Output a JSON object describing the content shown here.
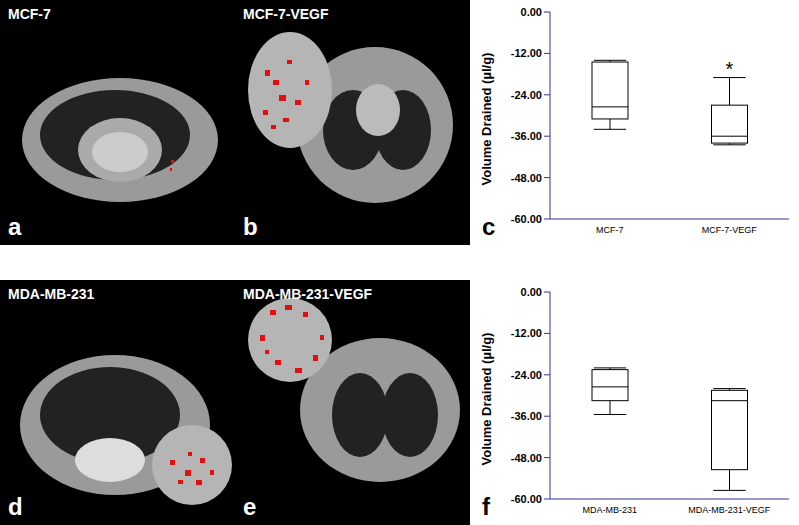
{
  "panels": [
    {
      "label": "a",
      "title": "MCF-7"
    },
    {
      "label": "b",
      "title": "MCF-7-VEGF"
    },
    {
      "label": "d",
      "title": "MDA-MB-231"
    },
    {
      "label": "e",
      "title": "MDA-MB-231-VEGF"
    }
  ],
  "chart_data": [
    {
      "type": "box",
      "panel_label": "c",
      "y_label": "Volume Drained (µl/g)",
      "categories": [
        "MCF-7",
        "MCF-7-VEGF"
      ],
      "min": [
        -34,
        -38.5
      ],
      "q1": [
        -31,
        -38
      ],
      "median": [
        -27.5,
        -36
      ],
      "q3": [
        -14.5,
        -27
      ],
      "max": [
        -14,
        -19
      ],
      "annotations": [
        {
          "category": "MCF-7-VEGF",
          "text": "*"
        }
      ],
      "ylim": [
        -60,
        0
      ],
      "yticks": [
        {
          "value": -60,
          "label": "-60.00"
        },
        {
          "value": -48,
          "label": "-48.00"
        },
        {
          "value": -36,
          "label": "-36.00"
        },
        {
          "value": -24,
          "label": "-24.00"
        },
        {
          "value": -12,
          "label": "-12.00"
        },
        {
          "value": 0,
          "label": "0.00"
        }
      ]
    },
    {
      "type": "box",
      "panel_label": "f",
      "y_label": "Volume Drained (µl/g)",
      "categories": [
        "MDA-MB-231",
        "MDA-MB-231-VEGF"
      ],
      "min": [
        -35.5,
        -57.5
      ],
      "q1": [
        -31.5,
        -51.5
      ],
      "median": [
        -27.5,
        -31.5
      ],
      "q3": [
        -22.5,
        -28.5
      ],
      "max": [
        -22,
        -28
      ],
      "ylim": [
        -60,
        0
      ],
      "yticks": [
        {
          "value": -60,
          "label": "-60.00"
        },
        {
          "value": -48,
          "label": "-48.00"
        },
        {
          "value": -36,
          "label": "-36.00"
        },
        {
          "value": -24,
          "label": "-24.00"
        },
        {
          "value": -12,
          "label": "-12.00"
        },
        {
          "value": 0,
          "label": "0.00"
        }
      ]
    }
  ]
}
